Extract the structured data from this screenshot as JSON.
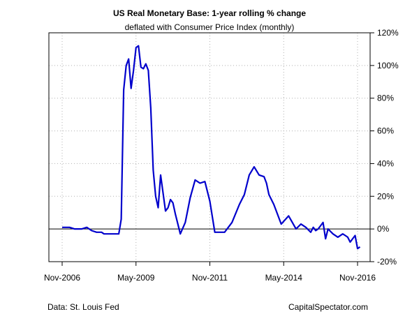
{
  "chart_data": {
    "type": "line",
    "title": "US Real Monetary Base: 1-year rolling % change",
    "subtitle": "deflated with Consumer Price Index (monthly)",
    "xlabel": "",
    "ylabel": "",
    "x_ticks": [
      "Nov-2006",
      "May-2009",
      "Nov-2011",
      "May-2014",
      "Nov-2016"
    ],
    "y_ticks": [
      "120%",
      "100%",
      "80%",
      "60%",
      "40%",
      "20%",
      "0%",
      "-20%"
    ],
    "y_tick_values": [
      120,
      100,
      80,
      60,
      40,
      20,
      0,
      -20
    ],
    "ylim": [
      -20,
      120
    ],
    "y_axis_side": "right",
    "grid": true,
    "zero_line": true,
    "line_color": "#0000CC",
    "series": [
      {
        "x": [
          "2006-11",
          "2007-02",
          "2007-04",
          "2007-07",
          "2007-09",
          "2007-11",
          "2008-01",
          "2008-03",
          "2008-04",
          "2008-06",
          "2008-08",
          "2008-10",
          "2008-11",
          "2008-12",
          "2009-01",
          "2009-02",
          "2009-03",
          "2009-04",
          "2009-05",
          "2009-06",
          "2009-07",
          "2009-08",
          "2009-09",
          "2009-10",
          "2009-11",
          "2009-12",
          "2010-01",
          "2010-02",
          "2010-03",
          "2010-04",
          "2010-05",
          "2010-06",
          "2010-07",
          "2010-08",
          "2010-09",
          "2010-11",
          "2011-01",
          "2011-03",
          "2011-05",
          "2011-07",
          "2011-09",
          "2011-11",
          "2012-01",
          "2012-03",
          "2012-05",
          "2012-08",
          "2012-11",
          "2013-01",
          "2013-03",
          "2013-05",
          "2013-07",
          "2013-09",
          "2013-10",
          "2013-11",
          "2014-01",
          "2014-04",
          "2014-07",
          "2014-10",
          "2014-12",
          "2015-02",
          "2015-04",
          "2015-05",
          "2015-06",
          "2015-07",
          "2015-08",
          "2015-09",
          "2015-10",
          "2015-11",
          "2016-01",
          "2016-03",
          "2016-05",
          "2016-06",
          "2016-07",
          "2016-08",
          "2016-10",
          "2016-11",
          "2016-12"
        ],
        "values": [
          1,
          1,
          0,
          0,
          1,
          -1,
          -2,
          -2,
          -3,
          -3,
          -3,
          -3,
          6,
          85,
          100,
          104,
          86,
          97,
          111,
          112,
          99,
          98,
          101,
          97,
          74,
          36,
          20,
          13,
          33,
          22,
          11,
          13,
          18,
          16,
          9,
          -3,
          4,
          19,
          30,
          28,
          29,
          17,
          -2,
          -2,
          -2,
          4,
          15,
          21,
          33,
          38,
          33,
          32,
          28,
          21,
          15,
          3,
          8,
          0,
          3,
          1,
          -2,
          1,
          -1,
          0,
          2,
          4,
          -6,
          0,
          -3,
          -5,
          -3,
          -4,
          -5,
          -8,
          -4,
          -12,
          -11
        ]
      }
    ],
    "footer_left": "Data: St. Louis Fed",
    "footer_right": "CapitalSpectator.com"
  }
}
